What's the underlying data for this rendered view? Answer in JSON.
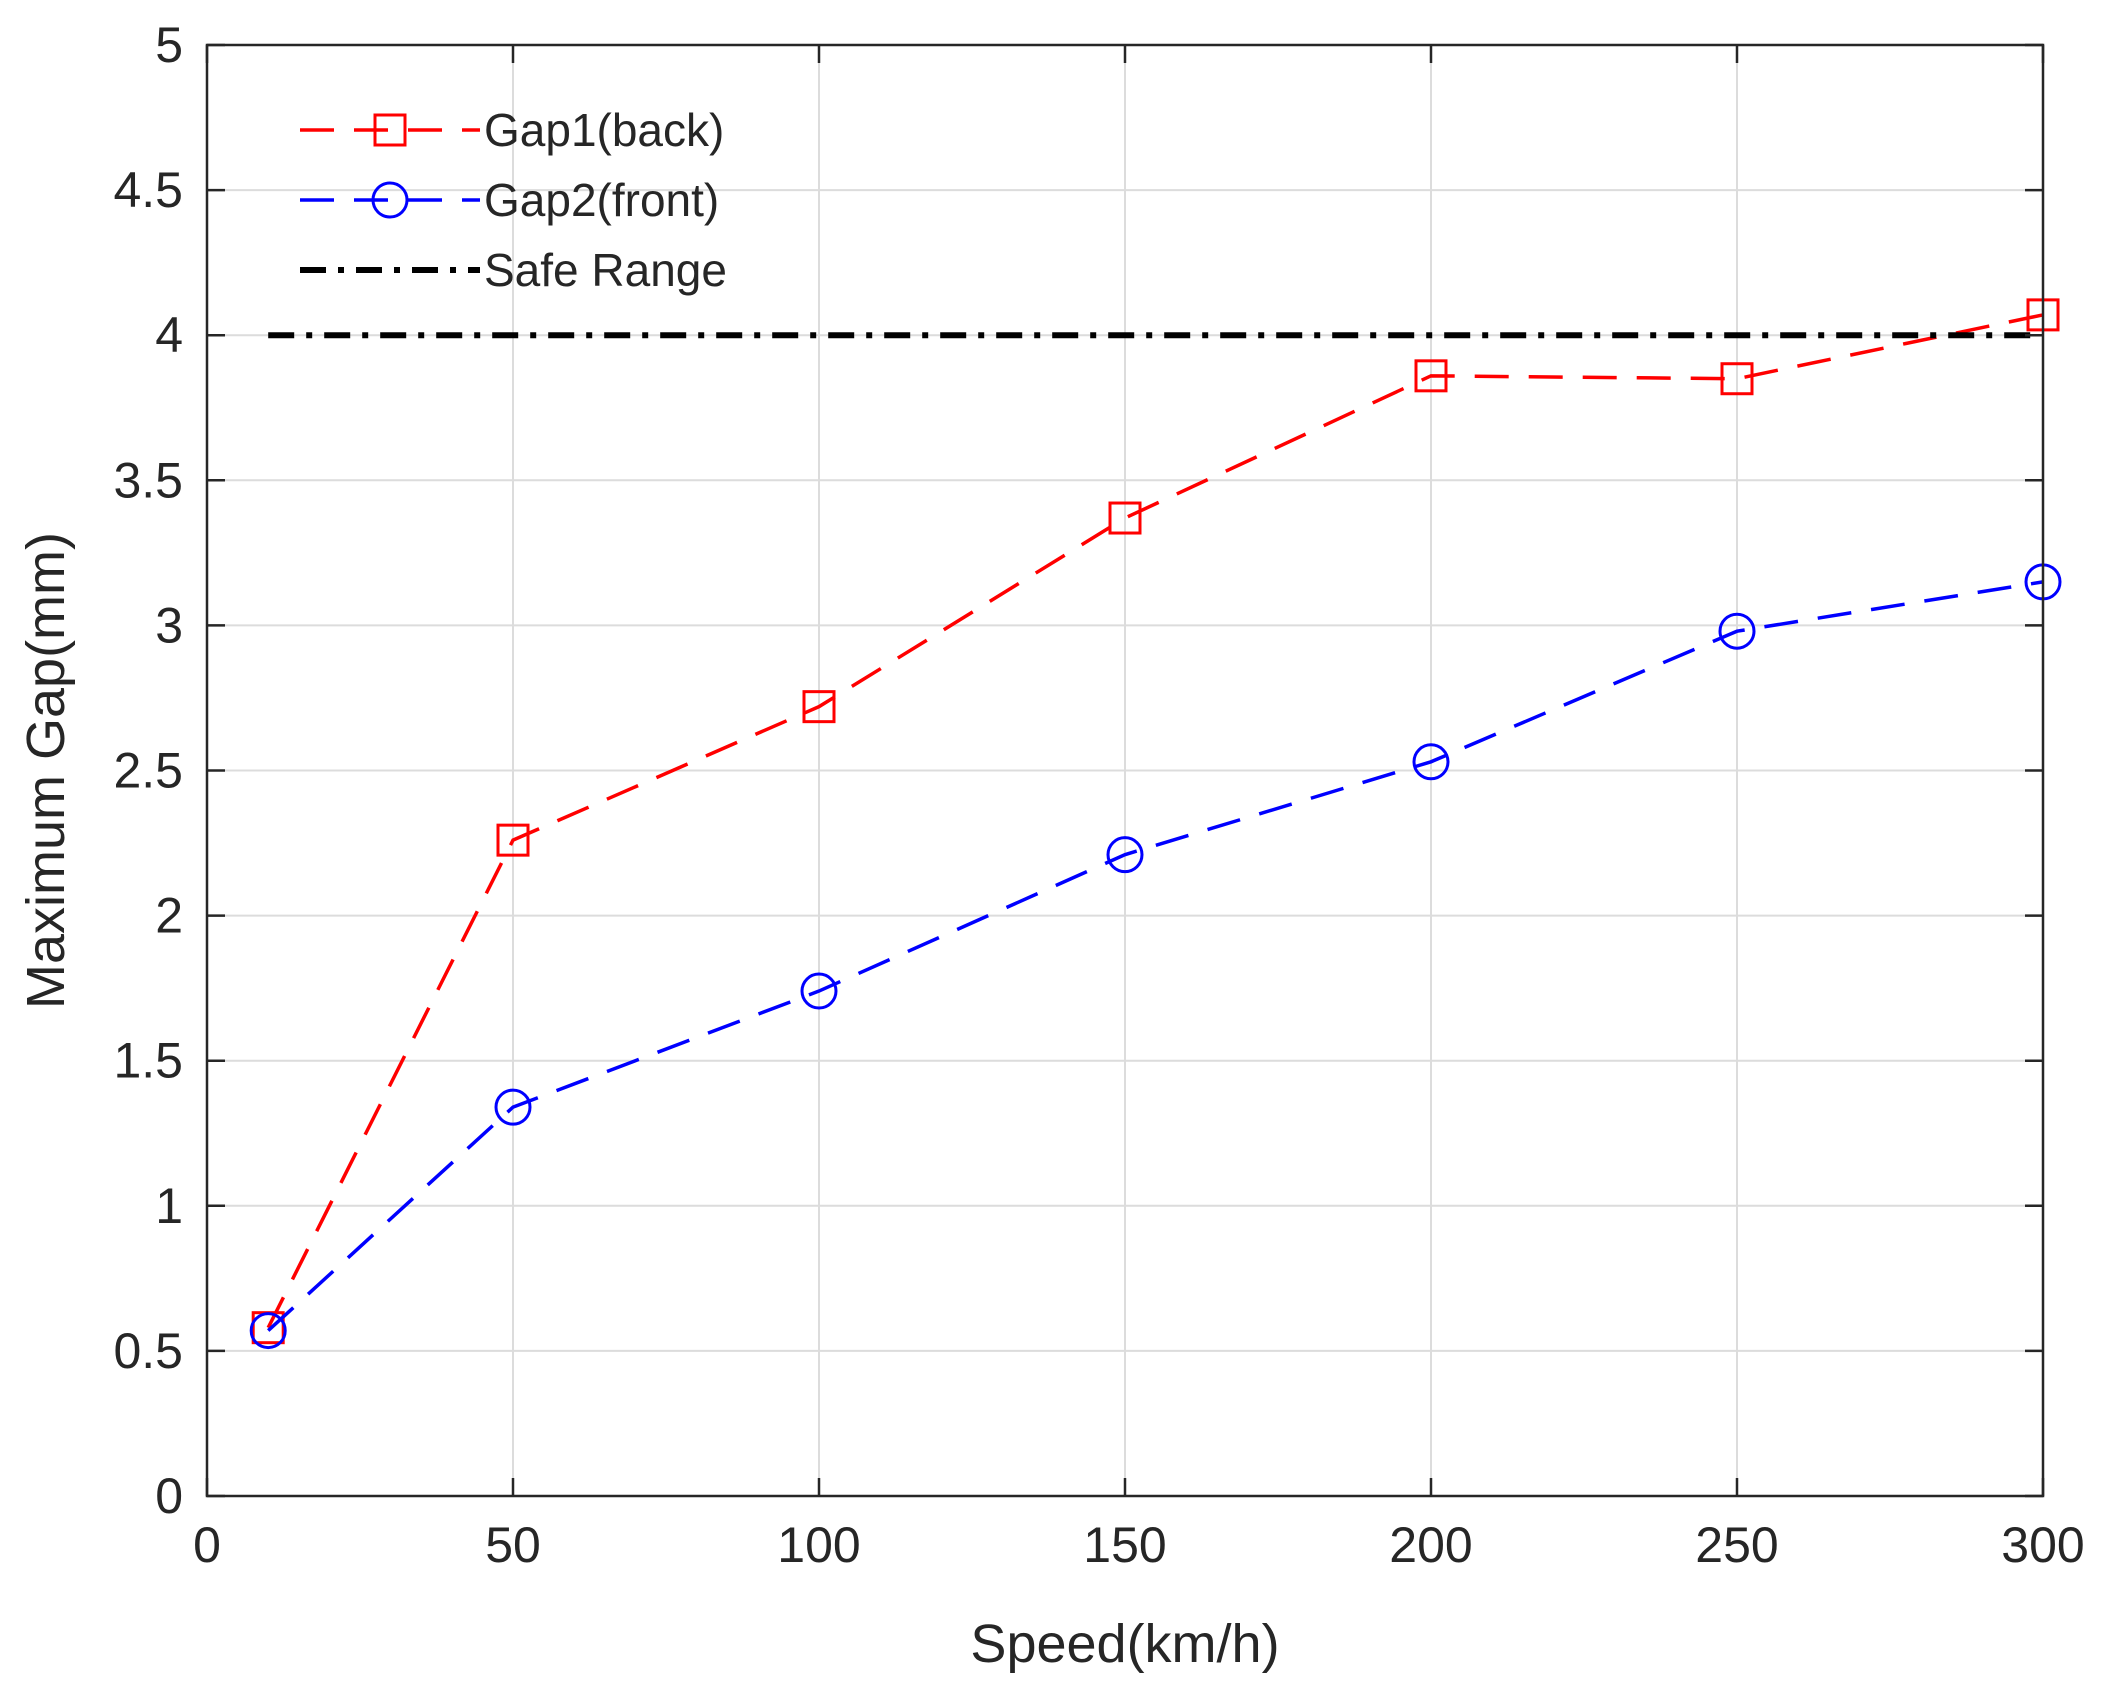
{
  "chart_data": {
    "type": "line",
    "title": "",
    "xlabel": "Speed(km/h)",
    "ylabel": "Maximum Gap(mm)",
    "xlim": [
      0,
      300
    ],
    "ylim": [
      0,
      5
    ],
    "xticks": [
      0,
      50,
      100,
      150,
      200,
      250,
      300
    ],
    "yticks": [
      0,
      0.5,
      1,
      1.5,
      2,
      2.5,
      3,
      3.5,
      4,
      4.5,
      5
    ],
    "grid": true,
    "legend_position": "top-left",
    "x": [
      10,
      50,
      100,
      150,
      200,
      250,
      300
    ],
    "series": [
      {
        "name": "Gap1(back)",
        "values": [
          0.58,
          2.26,
          2.72,
          3.37,
          3.86,
          3.85,
          4.07
        ],
        "color": "#ff0000",
        "marker": "square",
        "line_style": "dashed"
      },
      {
        "name": "Gap2(front)",
        "values": [
          0.57,
          1.34,
          1.74,
          2.21,
          2.53,
          2.98,
          3.15
        ],
        "color": "#0000ff",
        "marker": "circle",
        "line_style": "dashed"
      },
      {
        "name": "Safe Range",
        "x": [
          10,
          300
        ],
        "values": [
          4,
          4
        ],
        "color": "#000000",
        "marker": "none",
        "line_style": "dash-dot"
      }
    ]
  }
}
